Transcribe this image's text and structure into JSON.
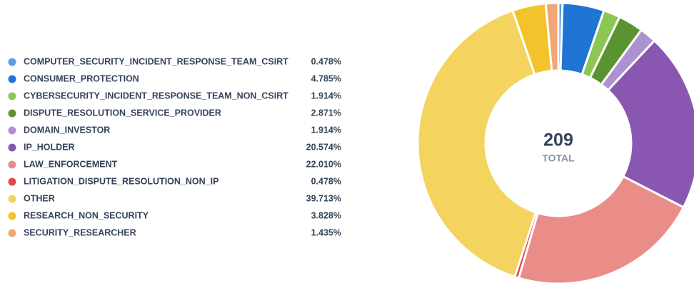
{
  "chart_data": {
    "type": "pie",
    "categories": [
      "COMPUTER_SECURITY_INCIDENT_RESPONSE_TEAM_CSIRT",
      "CONSUMER_PROTECTION",
      "CYBERSECURITY_INCIDENT_RESPONSE_TEAM_NON_CSIRT",
      "DISPUTE_RESOLUTION_SERVICE_PROVIDER",
      "DOMAIN_INVESTOR",
      "IP_HOLDER",
      "LAW_ENFORCEMENT",
      "LITIGATION_DISPUTE_RESOLUTION_NON_IP",
      "OTHER",
      "RESEARCH_NON_SECURITY",
      "SECURITY_RESEARCHER"
    ],
    "values": [
      0.478,
      4.785,
      1.914,
      2.871,
      1.914,
      20.574,
      22.01,
      0.478,
      39.713,
      3.828,
      1.435
    ],
    "value_labels": [
      "0.478%",
      "4.785%",
      "1.914%",
      "2.871%",
      "1.914%",
      "20.574%",
      "22.010%",
      "0.478%",
      "39.713%",
      "3.828%",
      "1.435%"
    ],
    "colors": [
      "#5a9de0",
      "#1f74d4",
      "#8cc653",
      "#5a9430",
      "#ad92d2",
      "#8957b2",
      "#ea8c88",
      "#e5474b",
      "#f4d35e",
      "#f2c32a",
      "#f2a577"
    ],
    "total": 209,
    "total_label": "TOTAL",
    "donut": true
  }
}
